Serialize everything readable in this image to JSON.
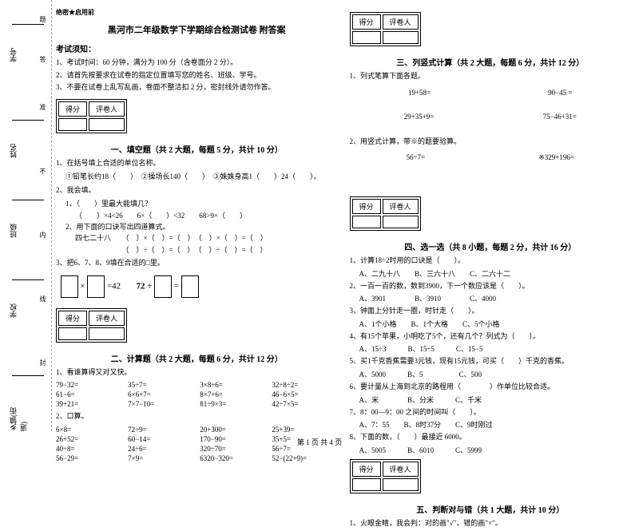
{
  "binding": {
    "labels": [
      "乡镇(街道)",
      "学校",
      "班级",
      "姓名",
      "学号"
    ],
    "dotted": [
      "封",
      "线",
      "内",
      "不",
      "准",
      "答",
      "题"
    ]
  },
  "confidential": "绝密★启用前",
  "title": "黑河市二年级数学下学期综合检测试卷 附答案",
  "notice_title": "考试须知：",
  "notices": [
    "1、考试时间：60 分钟，满分为 100 分（含卷面分 2 分）。",
    "2、请首先按要求在试卷的指定位置填写您的姓名、班级、学号。",
    "3、不要在试卷上乱写乱画，卷面不整洁扣 2 分，密封线外请勿作答。"
  ],
  "score_header": [
    "得分",
    "评卷人"
  ],
  "sections": {
    "s1": {
      "title": "一、填空题（共 2 大题，每题 5 分，共计 10 分）",
      "q1": "1、在括号填上合适的单位名称。",
      "q1_sub": "①铅笔长约18（　　）　②操场长140（　　）　③姝姝身高1（　　）24（　　）。",
      "q2": "2、我会填。",
      "q2_1": "1、（　　）里最大能填几？",
      "q2_1a": "（　　）×4<26　　6×（　　）<32　　68>9×（　　）",
      "q2_2": "2、用下面的口诀写出四道算式。",
      "q2_2a": "四七二十八　　（　）×（　）=（　）　（　）×（　）=（　）",
      "q2_2b": "　　　　　　　（　）÷（　）=（　）　（　）÷（　）=（　）",
      "q3": "3、把6、7、8、9填在合适的□里。",
      "eq1_left": "=42",
      "eq1_mid": "72 ÷",
      "eq1_right": "="
    },
    "s2": {
      "title": "二、计算题（共 2 大题，每题 6 分，共计 12 分）",
      "q1": "1、看谁算得又对又快。",
      "grid1": [
        "79−32=",
        "35÷7=",
        "3×8÷6=",
        "32÷8÷2=",
        "61−6=",
        "6×6+7=",
        "8×7+6=",
        "46−6×5=",
        "39+21=",
        "7×7−10=",
        "81÷9×3=",
        "42÷7×5="
      ],
      "q2": "2、口算。",
      "grid2": [
        "6×8=",
        "72÷9=",
        "20+300=",
        "25+39=",
        "26+52=",
        "60−14=",
        "170−90=",
        "35+5=",
        "40÷8=",
        "24÷6=",
        "320÷70=",
        "56÷7=",
        "56−29=",
        "7×9=",
        "6320−320=",
        "52−(22+9)="
      ]
    },
    "s3": {
      "title": "三、列竖式计算（共 2 大题，每题 6 分，共计 12 分）",
      "q1": "1、列式笔算下面各题。",
      "row1": [
        "19+58=",
        "90−45 ="
      ],
      "row2": [
        "29+35+9=",
        "75−46+31="
      ],
      "q2": "2、用竖式计算，带※的题要验算。",
      "row3": [
        "56÷7=",
        "※329+196="
      ]
    },
    "s4": {
      "title": "四、选一选（共 8 小题，每题 2 分，共计 16 分）",
      "items": [
        {
          "q": "1、计算18÷2时用的口诀是（　　）。",
          "o": "A、二九十八　　B、三六十八　　C、二六十二"
        },
        {
          "q": "2、一百一百的数，数到3900，下一个数应该是（　　）。",
          "o": "A、3901　　　　B、3910　　　　C、4000"
        },
        {
          "q": "3、钟面上分针走一圈，时针走（　　）。",
          "o": "A、1个小格　　B、1个大格　　C、5个小格"
        },
        {
          "q": "4、有15个苹果，小明吃了5个，还有几个？列式为（　　）。",
          "o": "A、15÷3　　　B、15÷5　　　C、15−5"
        },
        {
          "q": "5、买1千克香蕉需要3元钱，现有15元钱，可买（　　）千克的香蕉。",
          "o": "A、5000　　　B、5　　　　　C、500"
        },
        {
          "q": "6、要计量从上海到北京的路程用（　　　　）作单位比较合适。",
          "o": "A、米　　　　B、分米　　　C、千米"
        },
        {
          "q": "7、8：00—9：00 之间的时间叫（　　）。",
          "o": "A、7：55　　B、8时37分　　C、9时刚过"
        },
        {
          "q": "8、下面的数，（　　）最接近 6000。",
          "o": "A、5005　　　B、6010　　　C、5999"
        }
      ]
    },
    "s5": {
      "title": "五、判断对与错（共 1 大题，共计 10 分）",
      "q1": "1、火眼金睛，我会判：对的画\"√\"，错的画\"×\"。"
    }
  },
  "footer": "第 1 页 共 4 页"
}
